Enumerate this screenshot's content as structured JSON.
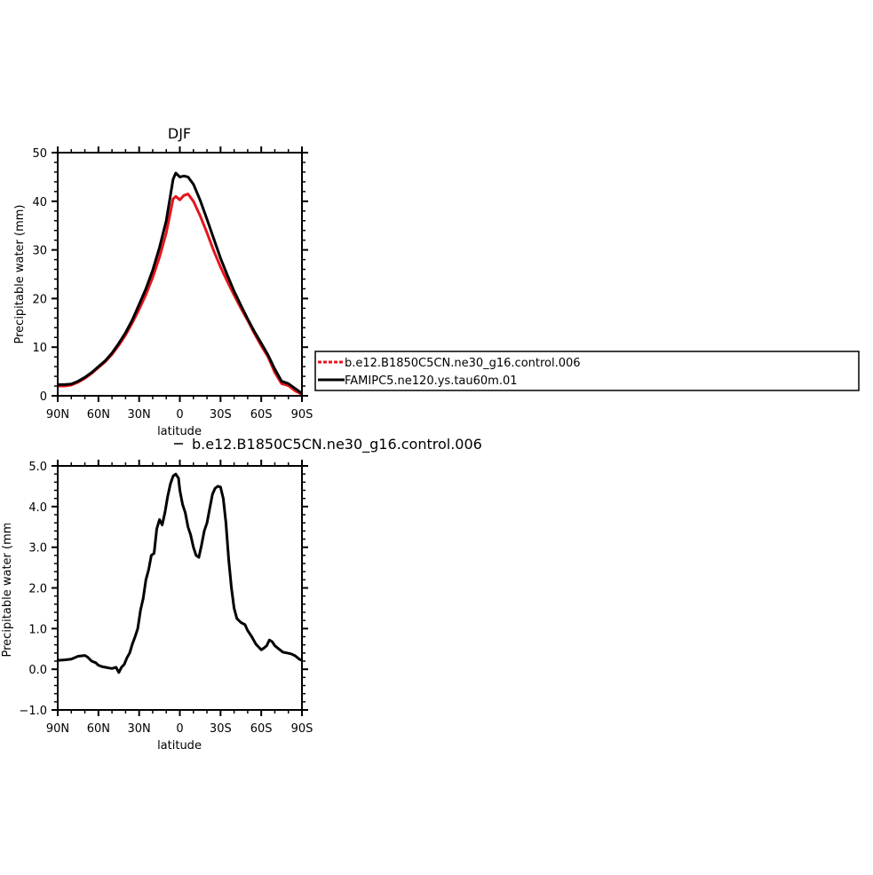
{
  "chart_data": [
    {
      "type": "line",
      "title": "DJF",
      "xlabel": "latitude",
      "ylabel": "Precipitable water (mm)",
      "xlim": [
        90,
        -90
      ],
      "ylim": [
        0,
        50
      ],
      "x_ticks": [
        {
          "value": 90,
          "label": "90N"
        },
        {
          "value": 60,
          "label": "60N"
        },
        {
          "value": 30,
          "label": "30N"
        },
        {
          "value": 0,
          "label": "0"
        },
        {
          "value": -30,
          "label": "30S"
        },
        {
          "value": -60,
          "label": "60S"
        },
        {
          "value": -90,
          "label": "90S"
        }
      ],
      "y_ticks": [
        {
          "value": 0,
          "label": "0"
        },
        {
          "value": 10,
          "label": "10"
        },
        {
          "value": 20,
          "label": "20"
        },
        {
          "value": 30,
          "label": "30"
        },
        {
          "value": 40,
          "label": "40"
        },
        {
          "value": 50,
          "label": "50"
        }
      ],
      "legend": {
        "placement": "right",
        "entries": [
          {
            "name": "b.e12.B1850C5CN.ne30_g16.control.006",
            "color": "#e8141c",
            "dashed": true
          },
          {
            "name": "FAMIPC5.ne120.ys.tau60m.01",
            "color": "#000000",
            "dashed": false
          }
        ]
      },
      "series": [
        {
          "name": "b.e12.B1850C5CN.ne30_g16.control.006",
          "color": "#e8141c",
          "x": [
            90,
            85,
            80,
            75,
            70,
            65,
            60,
            55,
            50,
            45,
            40,
            35,
            30,
            25,
            20,
            15,
            10,
            5,
            3,
            0,
            -3,
            -6,
            -10,
            -15,
            -20,
            -25,
            -30,
            -35,
            -40,
            -45,
            -50,
            -55,
            -60,
            -65,
            -70,
            -75,
            -80,
            -85,
            -90
          ],
          "y": [
            2.0,
            2.0,
            2.2,
            2.8,
            3.6,
            4.6,
            5.8,
            7.0,
            8.5,
            10.4,
            12.5,
            15.0,
            17.8,
            20.8,
            24.3,
            28.5,
            33.5,
            40.5,
            41.0,
            40.3,
            41.2,
            41.5,
            40.0,
            37.0,
            33.5,
            29.8,
            26.5,
            23.5,
            20.7,
            18.0,
            15.5,
            12.8,
            10.3,
            8.0,
            4.8,
            2.5,
            2.1,
            1.0,
            0.3
          ]
        },
        {
          "name": "FAMIPC5.ne120.ys.tau60m.01",
          "color": "#000000",
          "x": [
            90,
            85,
            80,
            75,
            70,
            65,
            60,
            55,
            50,
            45,
            40,
            35,
            30,
            25,
            20,
            15,
            10,
            5,
            3,
            0,
            -3,
            -6,
            -10,
            -15,
            -20,
            -25,
            -30,
            -35,
            -40,
            -45,
            -50,
            -55,
            -60,
            -65,
            -70,
            -75,
            -80,
            -85,
            -90
          ],
          "y": [
            2.3,
            2.3,
            2.4,
            3.0,
            3.8,
            4.8,
            6.0,
            7.2,
            8.8,
            10.8,
            13.0,
            15.6,
            18.8,
            22.0,
            25.8,
            30.5,
            36.0,
            44.5,
            45.8,
            45.0,
            45.2,
            45.0,
            43.5,
            40.2,
            36.3,
            32.3,
            28.3,
            24.8,
            21.5,
            18.6,
            15.8,
            13.2,
            10.8,
            8.4,
            5.5,
            3.0,
            2.5,
            1.5,
            0.5
          ]
        }
      ]
    },
    {
      "type": "line",
      "title": "b.e12.B1850C5CN.ne30_g16.control.006",
      "xlabel": "latitude",
      "ylabel": "Precipitable water (mm)",
      "xlim": [
        90,
        -90
      ],
      "ylim": [
        -1.0,
        5.0
      ],
      "x_ticks": [
        {
          "value": 90,
          "label": "90N"
        },
        {
          "value": 60,
          "label": "60N"
        },
        {
          "value": 30,
          "label": "30N"
        },
        {
          "value": 0,
          "label": "0"
        },
        {
          "value": -30,
          "label": "30S"
        },
        {
          "value": -60,
          "label": "60S"
        },
        {
          "value": -90,
          "label": "90S"
        }
      ],
      "y_ticks": [
        {
          "value": -1.0,
          "label": "−1.0"
        },
        {
          "value": 0.0,
          "label": "0.0"
        },
        {
          "value": 1.0,
          "label": "1.0"
        },
        {
          "value": 2.0,
          "label": "2.0"
        },
        {
          "value": 3.0,
          "label": "3.0"
        },
        {
          "value": 4.0,
          "label": "4.0"
        },
        {
          "value": 5.0,
          "label": "5.0"
        }
      ],
      "series": [
        {
          "color": "#000000",
          "x": [
            90,
            85,
            80,
            75,
            72,
            70,
            68,
            65,
            62,
            60,
            57,
            55,
            52,
            50,
            47,
            45,
            43,
            41,
            39,
            37,
            35,
            33,
            31,
            29,
            27,
            25,
            23,
            21,
            19,
            17,
            15,
            13,
            11,
            9,
            7,
            5,
            3,
            1,
            0,
            -2,
            -4,
            -6,
            -8,
            -10,
            -12,
            -14,
            -16,
            -18,
            -20,
            -22,
            -24,
            -26,
            -28,
            -30,
            -32,
            -34,
            -36,
            -38,
            -40,
            -42,
            -45,
            -48,
            -50,
            -53,
            -56,
            -58,
            -60,
            -62,
            -64,
            -65,
            -66,
            -68,
            -70,
            -73,
            -76,
            -79,
            -82,
            -85,
            -88,
            -90
          ],
          "y": [
            0.22,
            0.23,
            0.25,
            0.32,
            0.33,
            0.34,
            0.3,
            0.2,
            0.16,
            0.1,
            0.06,
            0.05,
            0.03,
            0.02,
            0.05,
            -0.08,
            0.05,
            0.12,
            0.28,
            0.4,
            0.62,
            0.8,
            1.0,
            1.45,
            1.75,
            2.2,
            2.45,
            2.8,
            2.85,
            3.45,
            3.68,
            3.55,
            3.85,
            4.25,
            4.55,
            4.75,
            4.8,
            4.7,
            4.4,
            4.05,
            3.85,
            3.5,
            3.3,
            3.0,
            2.8,
            2.75,
            3.05,
            3.4,
            3.6,
            3.95,
            4.3,
            4.45,
            4.5,
            4.48,
            4.2,
            3.6,
            2.7,
            2.0,
            1.5,
            1.25,
            1.15,
            1.1,
            0.95,
            0.8,
            0.62,
            0.55,
            0.48,
            0.52,
            0.58,
            0.65,
            0.72,
            0.68,
            0.58,
            0.5,
            0.42,
            0.4,
            0.38,
            0.33,
            0.25,
            0.22
          ]
        }
      ]
    }
  ]
}
